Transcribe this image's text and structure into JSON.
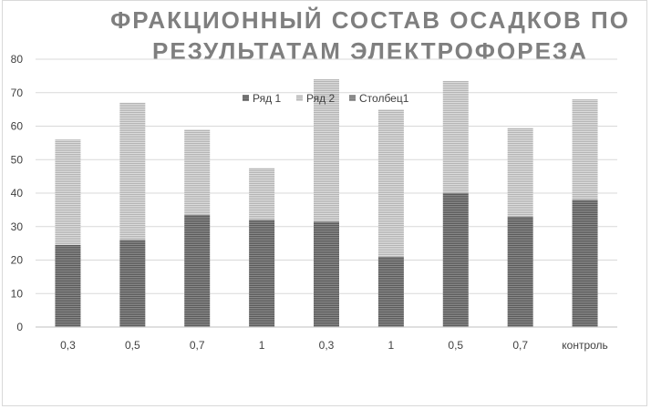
{
  "chart_data": {
    "type": "bar",
    "stacked": true,
    "title_lines": [
      "ФРАКЦИОННЫЙ СОСТАВ ОСАДКОВ ПО",
      "РЕЗУЛЬТАТАМ ЭЛЕКТРОФОРЕЗА"
    ],
    "categories": [
      "0,3",
      "0,5",
      "0,7",
      "1",
      "0,3",
      "1",
      "0,5",
      "0,7",
      "контроль"
    ],
    "series": [
      {
        "name": "Ряд 1",
        "color": "#6e6e6e",
        "values": [
          24.5,
          26,
          33.5,
          32,
          31.5,
          21,
          40,
          33,
          38
        ]
      },
      {
        "name": "Ряд 2",
        "color": "#c8c8c8",
        "values": [
          31.5,
          41,
          25.5,
          15.5,
          42.5,
          44,
          33.5,
          26.5,
          30
        ]
      },
      {
        "name": "Столбец1",
        "color": "#8c8c8c",
        "values": [
          0,
          0,
          0,
          0,
          0,
          0,
          0,
          0,
          0
        ]
      }
    ],
    "yticks": [
      "0",
      "10",
      "20",
      "30",
      "40",
      "50",
      "60",
      "70",
      "80"
    ],
    "ylim": [
      0,
      80
    ],
    "grid": true,
    "legend_position": "top-center"
  }
}
